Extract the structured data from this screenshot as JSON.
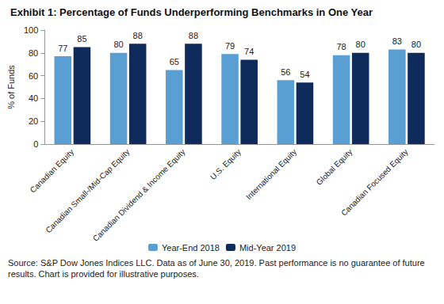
{
  "chart_data": {
    "type": "bar",
    "title": "Exhibit 1: Percentage of Funds Underperforming Benchmarks in One Year",
    "ylabel": "% of Funds",
    "note": "Source: S&P Dow Jones Indices LLC. Data as of June 30, 2019. Past performance is no guarantee of future results. Chart is provided for illustrative purposes.",
    "categories": [
      "Canadian Equity",
      "Canadian Small-/Mid-Cap Equity",
      "Canadian Dividend & Income Equity",
      "U.S. Equity",
      "International Equity",
      "Global Equity",
      "Canadian Focused Equity"
    ],
    "series": [
      {
        "name": "Year-End 2018",
        "color": "#5a9fd4",
        "values": [
          77,
          80,
          65,
          79,
          56,
          78,
          83
        ]
      },
      {
        "name": "Mid-Year 2019",
        "color": "#0e2b5c",
        "values": [
          85,
          88,
          88,
          74,
          54,
          80,
          80
        ]
      }
    ],
    "ylim": [
      0,
      100
    ],
    "yticks": [
      0,
      20,
      40,
      60,
      80,
      100
    ],
    "grid": false,
    "legend": "bottom",
    "data_labels": true
  }
}
